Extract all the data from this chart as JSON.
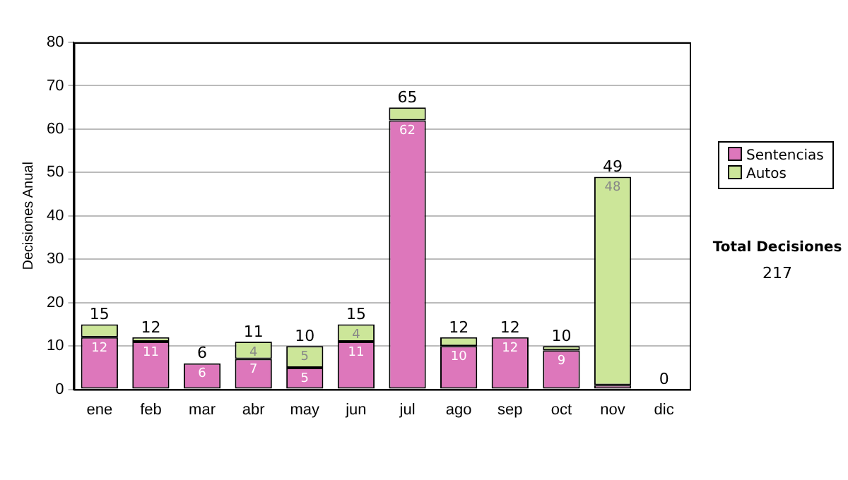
{
  "chart_data": {
    "type": "bar",
    "stacked": true,
    "ylabel": "Decisiones Anual",
    "categories": [
      "ene",
      "feb",
      "mar",
      "abr",
      "may",
      "jun",
      "jul",
      "ago",
      "sep",
      "oct",
      "nov",
      "dic"
    ],
    "series": [
      {
        "name": "Sentencias",
        "color": "#dd77bb",
        "values": [
          12,
          11,
          6,
          7,
          5,
          11,
          62,
          10,
          12,
          9,
          1,
          0
        ],
        "value_labels": [
          "12",
          "11",
          "6",
          "7",
          "5",
          "11",
          "62",
          "10",
          "12",
          "9",
          null,
          null
        ]
      },
      {
        "name": "Autos",
        "color": "#cce699",
        "values": [
          3,
          1,
          0,
          4,
          5,
          4,
          3,
          2,
          0,
          1,
          48,
          0
        ],
        "value_labels": [
          null,
          null,
          null,
          "4",
          "5",
          "4",
          null,
          null,
          null,
          null,
          "48",
          null
        ]
      }
    ],
    "totals": [
      "15",
      "12",
      "6",
      "11",
      "10",
      "15",
      "65",
      "12",
      "12",
      "10",
      "49",
      "0"
    ],
    "ylim": [
      0,
      80
    ],
    "yticks": [
      0,
      10,
      20,
      30,
      40,
      50,
      60,
      70,
      80
    ],
    "grid": "y",
    "legend": "right",
    "annotations": [
      "Total Decisiones",
      "217"
    ]
  }
}
